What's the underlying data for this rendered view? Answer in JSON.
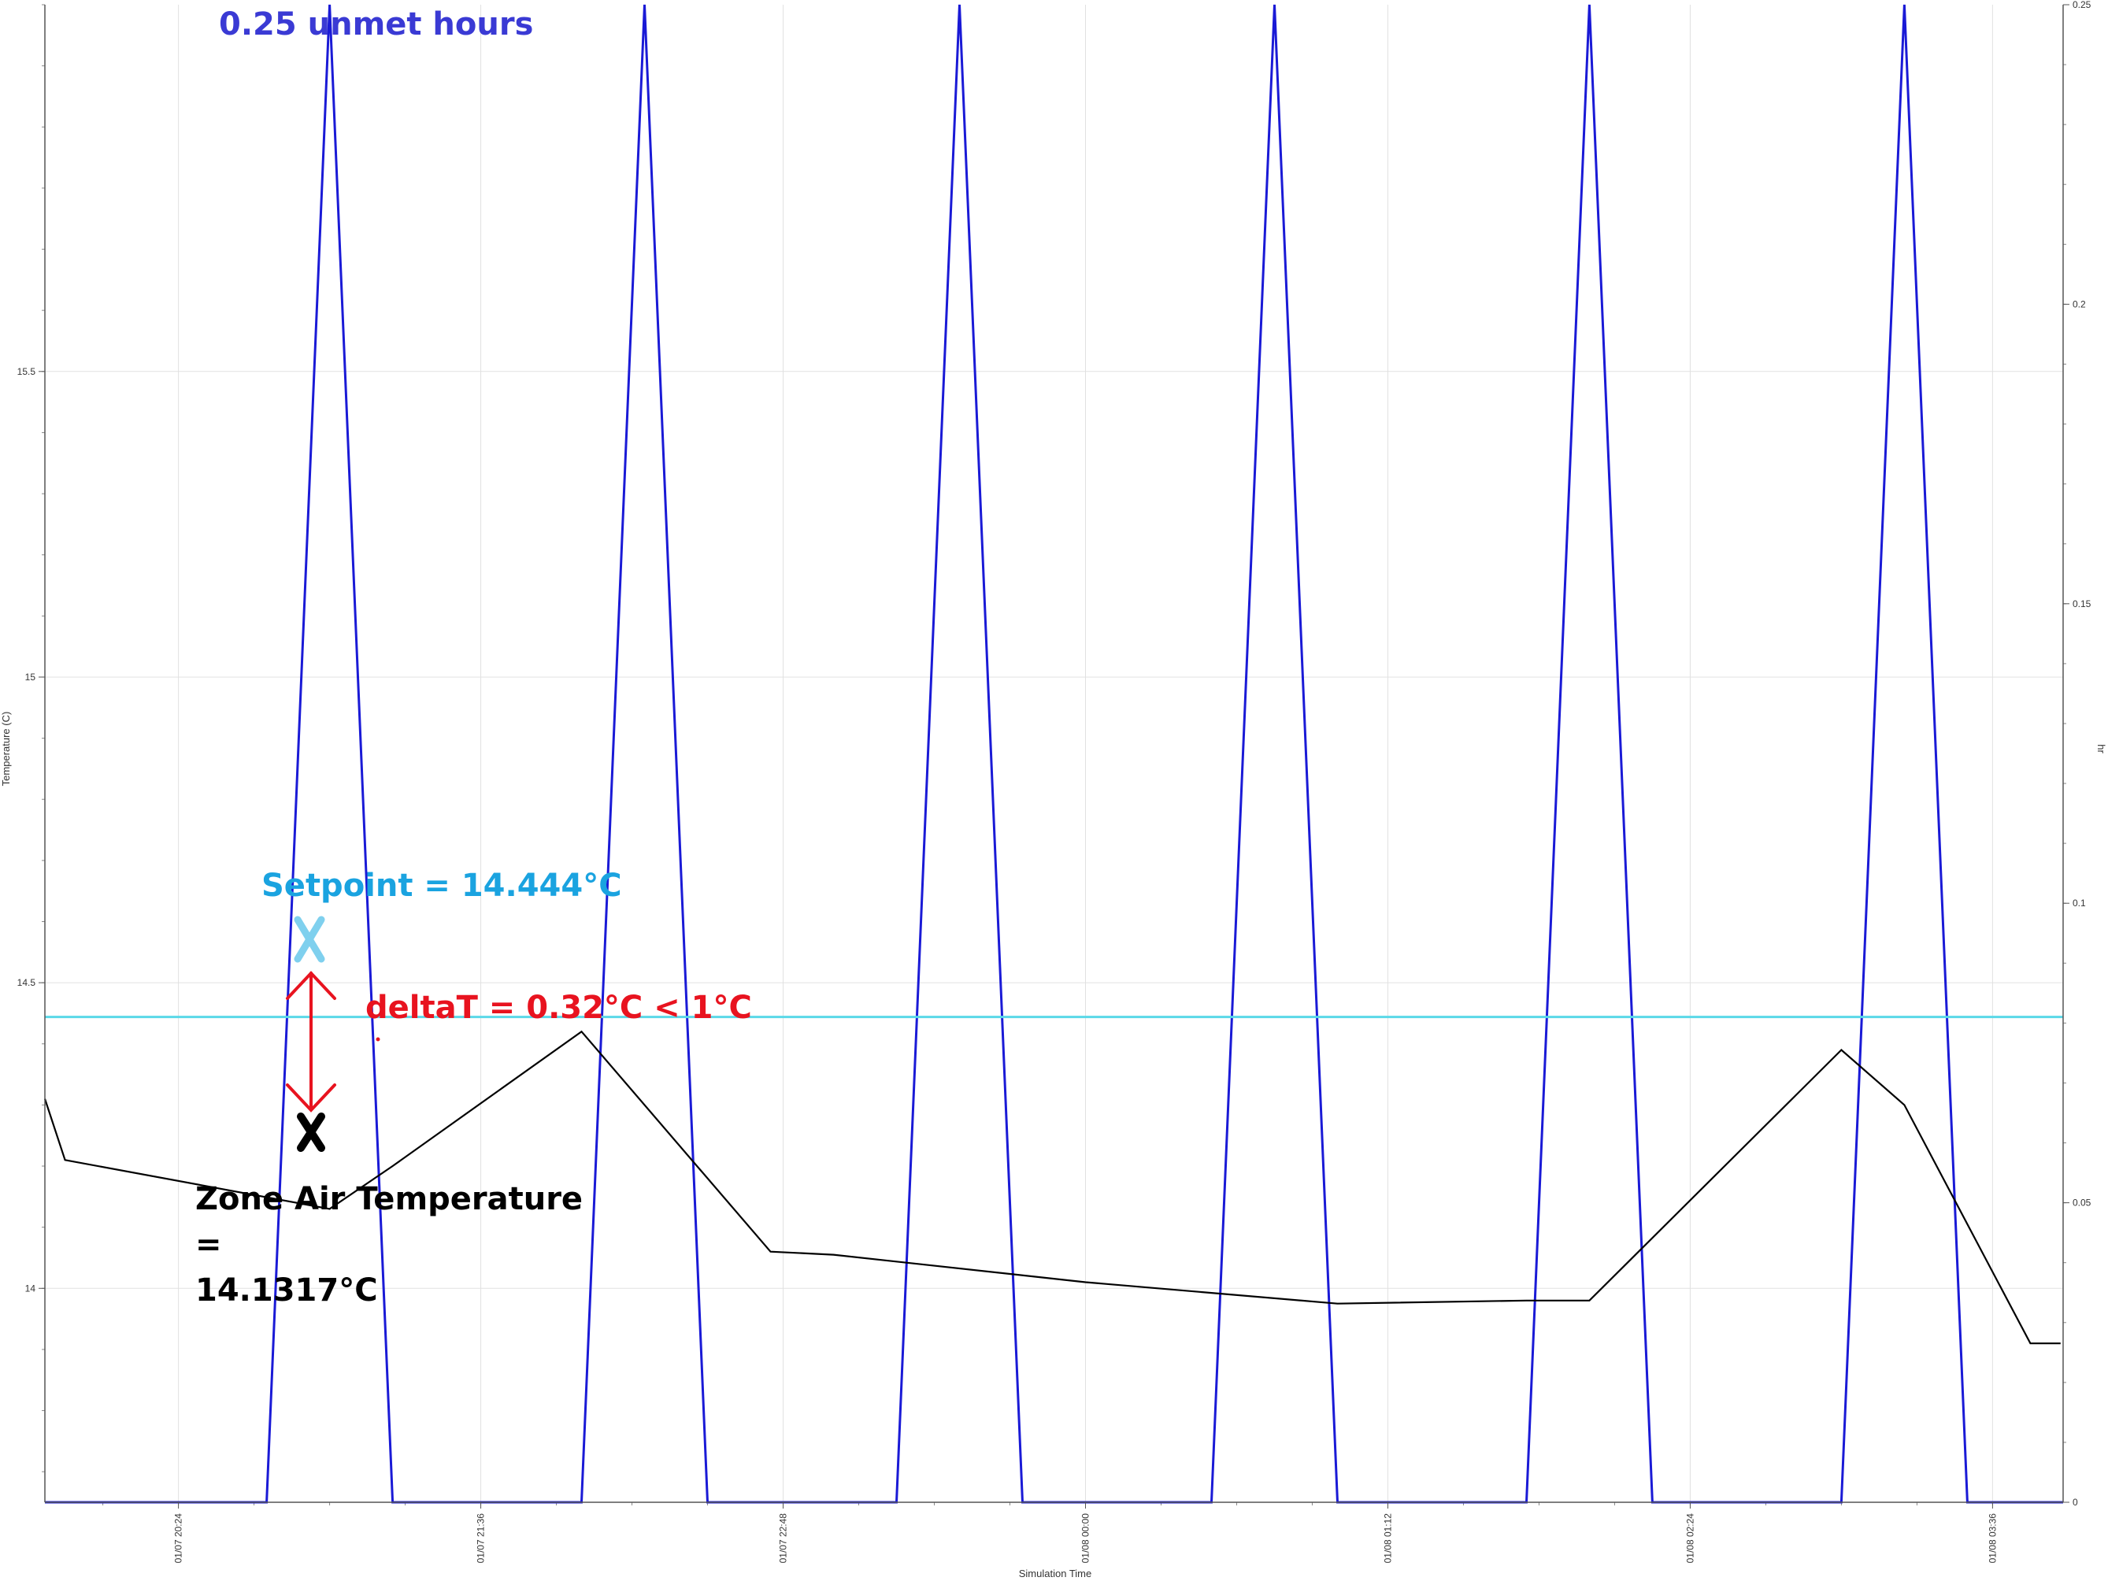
{
  "chart_data": {
    "type": "line",
    "title": "",
    "xlabel": "Simulation Time",
    "ylabel": "Temperature (C)",
    "y2label": "hr",
    "x_unit": "hours since 01/07 20:00",
    "xlim": [
      19.87,
      27.88
    ],
    "ylim": [
      13.65,
      16.1
    ],
    "y2lim": [
      0,
      0.25
    ],
    "grid": true,
    "legend": "none",
    "x_ticks": [
      {
        "value": 20.4,
        "label": "01/07 20:24"
      },
      {
        "value": 21.6,
        "label": "01/07 21:36"
      },
      {
        "value": 22.8,
        "label": "01/07 22:48"
      },
      {
        "value": 24.0,
        "label": "01/08 00:00"
      },
      {
        "value": 25.2,
        "label": "01/08 01:12"
      },
      {
        "value": 26.4,
        "label": "01/08 02:24"
      },
      {
        "value": 27.6,
        "label": "01/08 03:36"
      }
    ],
    "y_ticks": [
      {
        "value": 14,
        "label": "14"
      },
      {
        "value": 14.5,
        "label": "14.5"
      },
      {
        "value": 15,
        "label": "15"
      },
      {
        "value": 15.5,
        "label": "15.5"
      }
    ],
    "y2_ticks": [
      {
        "value": 0,
        "label": "0"
      },
      {
        "value": 0.05,
        "label": "0.05"
      },
      {
        "value": 0.1,
        "label": "0.1"
      },
      {
        "value": 0.15,
        "label": "0.15"
      },
      {
        "value": 0.2,
        "label": "0.2"
      },
      {
        "value": 0.25,
        "label": "0.25"
      }
    ],
    "series": [
      {
        "axis": "y2",
        "color": "#1a1ad6",
        "x": [
          19.87,
          20.75,
          21.0,
          21.25,
          22.0,
          22.25,
          22.5,
          23.25,
          23.5,
          23.75,
          24.5,
          24.75,
          25.0,
          25.75,
          26.0,
          26.25,
          27.0,
          27.25,
          27.5,
          27.88
        ],
        "y": [
          0,
          0,
          0.25,
          0,
          0,
          0.25,
          0,
          0,
          0.25,
          0,
          0,
          0.25,
          0,
          0,
          0.25,
          0,
          0,
          0.25,
          0,
          0
        ]
      },
      {
        "axis": "y",
        "color": "#000000",
        "x": [
          19.87,
          19.95,
          21.0,
          21.25,
          22.0,
          22.75,
          23.0,
          24.0,
          25.0,
          25.75,
          26.0,
          27.0,
          27.25,
          27.75,
          27.87
        ],
        "y": [
          14.31,
          14.21,
          14.13,
          14.2,
          14.42,
          14.06,
          14.055,
          14.01,
          13.975,
          13.98,
          13.98,
          14.39,
          14.3,
          13.91,
          13.91
        ]
      },
      {
        "axis": "y",
        "color": "#5ad8e8",
        "x": [
          19.87,
          27.88
        ],
        "y": [
          14.444,
          14.444
        ]
      }
    ],
    "annotations": {
      "unmet": "0.25 unmet hours",
      "setpoint": "Setpoint = 14.444°C",
      "delta": "deltaT = 0.32°C < 1°C",
      "zone_line1": "Zone Air Temperature",
      "zone_line2": "=",
      "zone_line3": "14.1317°C"
    },
    "colors": {
      "unmet": "#3a3ad4",
      "setpoint": "#1aa3e0",
      "setpoint_mark": "#7fd0ee",
      "delta": "#e8131f",
      "zone": "#000000"
    }
  }
}
